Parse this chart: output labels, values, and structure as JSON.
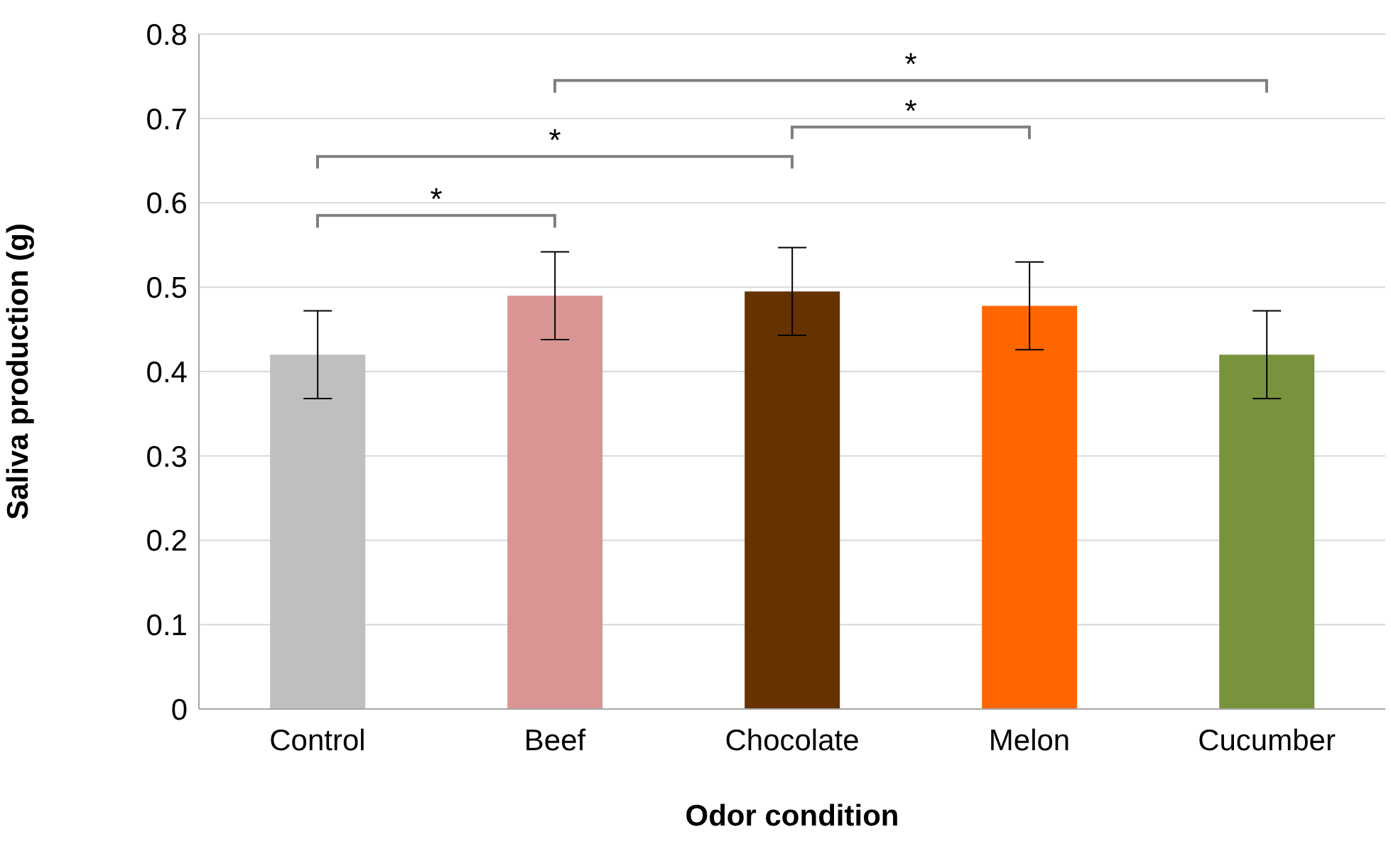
{
  "chart_data": {
    "type": "bar",
    "xlabel": "Odor condition",
    "ylabel": "Saliva production (g)",
    "categories": [
      "Control",
      "Beef",
      "Chocolate",
      "Melon",
      "Cucumber"
    ],
    "values": [
      0.42,
      0.49,
      0.495,
      0.478,
      0.42
    ],
    "colors": [
      "#bfbfbf",
      "#d99594",
      "#663300",
      "#ff6600",
      "#77933c"
    ],
    "errors": [
      0.052,
      0.052,
      0.052,
      0.052,
      0.052
    ],
    "ylim": [
      0,
      0.8
    ],
    "yticks": [
      0,
      0.1,
      0.2,
      0.3,
      0.4,
      0.5,
      0.6,
      0.7,
      0.8
    ],
    "grid": "y",
    "annotations": [
      "*",
      "*",
      "*",
      "*"
    ]
  }
}
